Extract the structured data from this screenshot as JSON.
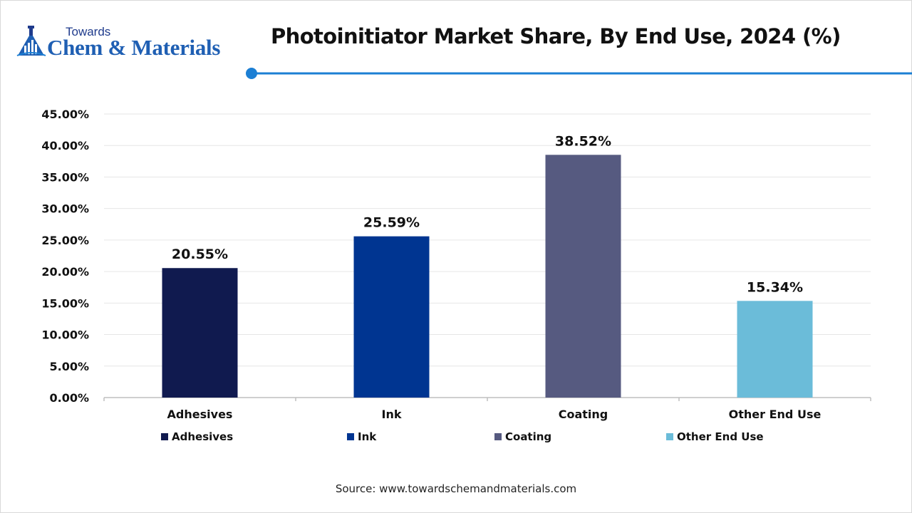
{
  "brand": {
    "small": "Towards",
    "big": "Chem & Materials"
  },
  "colors": {
    "accent": "#1c7fd4",
    "brand_blue": "#1f5fb3"
  },
  "source": "Source: www.towardschemandmaterials.com",
  "chart_data": {
    "type": "bar",
    "title": "Photoinitiator Market Share, By End Use, 2024 (%)",
    "categories": [
      "Adhesives",
      "Ink",
      "Coating",
      "Other End Use"
    ],
    "values": [
      20.55,
      25.59,
      38.52,
      15.34
    ],
    "value_labels": [
      "20.55%",
      "25.59%",
      "38.52%",
      "15.34%"
    ],
    "colors": [
      "#101a4f",
      "#003591",
      "#565a80",
      "#6bbcd9"
    ],
    "ylim": [
      0,
      45
    ],
    "yticks": [
      0,
      5,
      10,
      15,
      20,
      25,
      30,
      35,
      40,
      45
    ],
    "ytick_labels": [
      "0.00%",
      "5.00%",
      "10.00%",
      "15.00%",
      "20.00%",
      "25.00%",
      "30.00%",
      "35.00%",
      "40.00%",
      "45.00%"
    ],
    "xlabel": "",
    "ylabel": "",
    "grid": true,
    "legend": {
      "position": "bottom",
      "entries": [
        "Adhesives",
        "Ink",
        "Coating",
        "Other End Use"
      ]
    }
  }
}
